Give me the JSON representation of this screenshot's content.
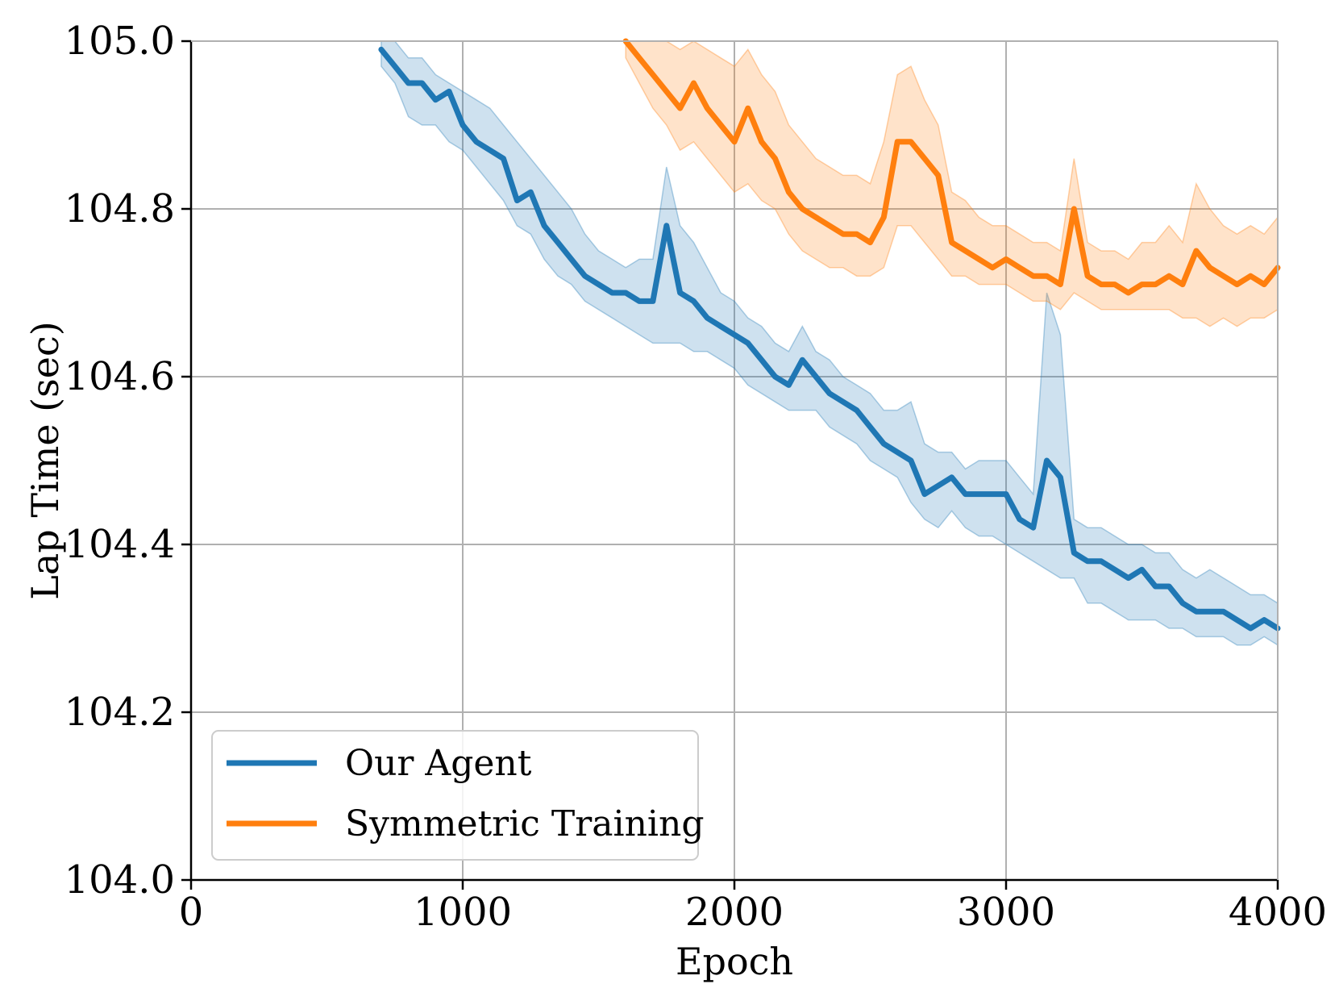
{
  "chart_data": {
    "type": "line",
    "title": "",
    "xlabel": "Epoch",
    "ylabel": "Lap Time (sec)",
    "xlim": [
      0,
      4000
    ],
    "ylim": [
      104.0,
      105.0
    ],
    "xticks": [
      0,
      1000,
      2000,
      3000,
      4000
    ],
    "xtick_labels": [
      "0",
      "1000",
      "2000",
      "3000",
      "4000"
    ],
    "yticks": [
      104.0,
      104.2,
      104.4,
      104.6,
      104.8,
      105.0
    ],
    "ytick_labels": [
      "104.0",
      "104.2",
      "104.4",
      "104.6",
      "104.8",
      "105.0"
    ],
    "grid": true,
    "legend_position": "lower-left",
    "series": [
      {
        "name": "Our Agent",
        "color": "#1f77b4",
        "x": [
          700,
          750,
          800,
          850,
          900,
          950,
          1000,
          1050,
          1100,
          1150,
          1200,
          1250,
          1300,
          1350,
          1400,
          1450,
          1500,
          1550,
          1600,
          1650,
          1700,
          1750,
          1800,
          1850,
          1900,
          1950,
          2000,
          2050,
          2100,
          2150,
          2200,
          2250,
          2300,
          2350,
          2400,
          2450,
          2500,
          2550,
          2600,
          2650,
          2700,
          2750,
          2800,
          2850,
          2900,
          2950,
          3000,
          3050,
          3100,
          3150,
          3200,
          3250,
          3300,
          3350,
          3400,
          3450,
          3500,
          3550,
          3600,
          3650,
          3700,
          3750,
          3800,
          3850,
          3900,
          3950,
          4000
        ],
        "values": [
          104.99,
          104.97,
          104.95,
          104.95,
          104.93,
          104.94,
          104.9,
          104.88,
          104.87,
          104.86,
          104.81,
          104.82,
          104.78,
          104.76,
          104.74,
          104.72,
          104.71,
          104.7,
          104.7,
          104.69,
          104.69,
          104.78,
          104.7,
          104.69,
          104.67,
          104.66,
          104.65,
          104.64,
          104.62,
          104.6,
          104.59,
          104.62,
          104.6,
          104.58,
          104.57,
          104.56,
          104.54,
          104.52,
          104.51,
          104.5,
          104.46,
          104.47,
          104.48,
          104.46,
          104.46,
          104.46,
          104.46,
          104.43,
          104.42,
          104.5,
          104.48,
          104.39,
          104.38,
          104.38,
          104.37,
          104.36,
          104.37,
          104.35,
          104.35,
          104.33,
          104.32,
          104.32,
          104.32,
          104.31,
          104.3,
          104.31,
          104.3
        ],
        "band_lower": [
          104.97,
          104.95,
          104.91,
          104.9,
          104.9,
          104.88,
          104.87,
          104.85,
          104.83,
          104.81,
          104.78,
          104.77,
          104.74,
          104.72,
          104.71,
          104.69,
          104.68,
          104.67,
          104.66,
          104.65,
          104.64,
          104.64,
          104.64,
          104.63,
          104.63,
          104.62,
          104.61,
          104.59,
          104.58,
          104.57,
          104.56,
          104.56,
          104.56,
          104.54,
          104.53,
          104.52,
          104.5,
          104.49,
          104.48,
          104.45,
          104.43,
          104.42,
          104.44,
          104.42,
          104.41,
          104.41,
          104.4,
          104.39,
          104.38,
          104.37,
          104.36,
          104.36,
          104.33,
          104.33,
          104.32,
          104.31,
          104.31,
          104.31,
          104.3,
          104.3,
          104.29,
          104.29,
          104.29,
          104.28,
          104.28,
          104.29,
          104.28
        ],
        "band_upper": [
          105.0,
          105.0,
          104.98,
          104.98,
          104.96,
          104.95,
          104.94,
          104.93,
          104.92,
          104.9,
          104.88,
          104.86,
          104.84,
          104.82,
          104.8,
          104.77,
          104.75,
          104.74,
          104.73,
          104.74,
          104.74,
          104.85,
          104.78,
          104.76,
          104.73,
          104.7,
          104.69,
          104.67,
          104.66,
          104.64,
          104.63,
          104.66,
          104.63,
          104.62,
          104.6,
          104.59,
          104.58,
          104.56,
          104.56,
          104.57,
          104.52,
          104.51,
          104.51,
          104.49,
          104.5,
          104.5,
          104.5,
          104.48,
          104.46,
          104.7,
          104.65,
          104.43,
          104.42,
          104.42,
          104.41,
          104.4,
          104.4,
          104.39,
          104.39,
          104.37,
          104.36,
          104.37,
          104.36,
          104.35,
          104.34,
          104.34,
          104.33
        ]
      },
      {
        "name": "Symmetric Training",
        "color": "#ff7f0e",
        "x": [
          1600,
          1650,
          1700,
          1750,
          1800,
          1850,
          1900,
          1950,
          2000,
          2050,
          2100,
          2150,
          2200,
          2250,
          2300,
          2350,
          2400,
          2450,
          2500,
          2550,
          2600,
          2650,
          2700,
          2750,
          2800,
          2850,
          2900,
          2950,
          3000,
          3050,
          3100,
          3150,
          3200,
          3250,
          3300,
          3350,
          3400,
          3450,
          3500,
          3550,
          3600,
          3650,
          3700,
          3750,
          3800,
          3850,
          3900,
          3950,
          4000
        ],
        "values": [
          105.0,
          104.98,
          104.96,
          104.94,
          104.92,
          104.95,
          104.92,
          104.9,
          104.88,
          104.92,
          104.88,
          104.86,
          104.82,
          104.8,
          104.79,
          104.78,
          104.77,
          104.77,
          104.76,
          104.79,
          104.88,
          104.88,
          104.86,
          104.84,
          104.76,
          104.75,
          104.74,
          104.73,
          104.74,
          104.73,
          104.72,
          104.72,
          104.71,
          104.8,
          104.72,
          104.71,
          104.71,
          104.7,
          104.71,
          104.71,
          104.72,
          104.71,
          104.75,
          104.73,
          104.72,
          104.71,
          104.72,
          104.71,
          104.73
        ],
        "band_lower": [
          104.98,
          104.95,
          104.92,
          104.9,
          104.87,
          104.88,
          104.86,
          104.84,
          104.82,
          104.83,
          104.81,
          104.8,
          104.77,
          104.75,
          104.74,
          104.73,
          104.73,
          104.72,
          104.72,
          104.73,
          104.78,
          104.78,
          104.76,
          104.74,
          104.72,
          104.72,
          104.71,
          104.71,
          104.71,
          104.7,
          104.69,
          104.69,
          104.68,
          104.7,
          104.69,
          104.68,
          104.68,
          104.68,
          104.68,
          104.68,
          104.68,
          104.67,
          104.67,
          104.66,
          104.67,
          104.66,
          104.67,
          104.67,
          104.68
        ],
        "band_upper": [
          105.0,
          105.0,
          105.0,
          105.0,
          104.99,
          105.0,
          104.99,
          104.98,
          104.97,
          104.99,
          104.96,
          104.94,
          104.9,
          104.88,
          104.86,
          104.85,
          104.84,
          104.84,
          104.83,
          104.88,
          104.96,
          104.97,
          104.93,
          104.9,
          104.82,
          104.81,
          104.79,
          104.78,
          104.78,
          104.77,
          104.76,
          104.76,
          104.75,
          104.86,
          104.76,
          104.75,
          104.75,
          104.74,
          104.76,
          104.76,
          104.78,
          104.76,
          104.83,
          104.8,
          104.78,
          104.77,
          104.78,
          104.77,
          104.79
        ]
      }
    ]
  }
}
